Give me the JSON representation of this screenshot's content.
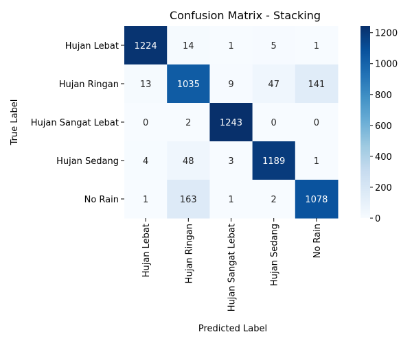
{
  "chart_data": {
    "type": "heatmap",
    "title": "Confusion Matrix - Stacking",
    "xlabel": "Predicted Label",
    "ylabel": "True Label",
    "x_categories": [
      "Hujan Lebat",
      "Hujan Ringan",
      "Hujan Sangat Lebat",
      "Hujan Sedang",
      "No Rain"
    ],
    "y_categories": [
      "Hujan Lebat",
      "Hujan Ringan",
      "Hujan Sangat Lebat",
      "Hujan Sedang",
      "No Rain"
    ],
    "values": [
      [
        1224,
        14,
        1,
        5,
        1
      ],
      [
        13,
        1035,
        9,
        47,
        141
      ],
      [
        0,
        2,
        1243,
        0,
        0
      ],
      [
        4,
        48,
        3,
        1189,
        1
      ],
      [
        1,
        163,
        1,
        2,
        1078
      ]
    ],
    "colormap": "Blues",
    "vmin": 0,
    "vmax": 1243,
    "colorbar_ticks": [
      0,
      200,
      400,
      600,
      800,
      1000,
      1200
    ]
  }
}
